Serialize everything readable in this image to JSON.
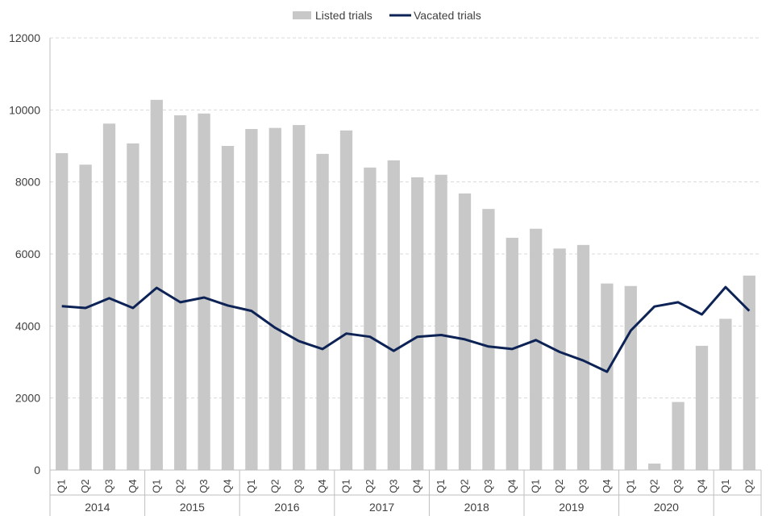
{
  "chart_data": {
    "type": "bar",
    "title": "",
    "xlabel": "",
    "ylabel": "",
    "ylim": [
      0,
      12000
    ],
    "yticks": [
      0,
      2000,
      4000,
      6000,
      8000,
      10000,
      12000
    ],
    "grid": true,
    "legend_position": "top-center",
    "quarters": [
      "Q1",
      "Q2",
      "Q3",
      "Q4",
      "Q1",
      "Q2",
      "Q3",
      "Q4",
      "Q1",
      "Q2",
      "Q3",
      "Q4",
      "Q1",
      "Q2",
      "Q3",
      "Q4",
      "Q1",
      "Q2",
      "Q3",
      "Q4",
      "Q1",
      "Q2",
      "Q3",
      "Q4",
      "Q1",
      "Q2",
      "Q3",
      "Q4",
      "Q1",
      "Q2"
    ],
    "years": [
      {
        "label": "2014",
        "count": 4
      },
      {
        "label": "2015",
        "count": 4
      },
      {
        "label": "2016",
        "count": 4
      },
      {
        "label": "2017",
        "count": 4
      },
      {
        "label": "2018",
        "count": 4
      },
      {
        "label": "2019",
        "count": 4
      },
      {
        "label": "2020",
        "count": 4
      },
      {
        "label": "",
        "count": 2
      }
    ],
    "series": [
      {
        "name": "Listed trials",
        "type": "bar",
        "color": "#c8c8c8",
        "values": [
          8800,
          8480,
          9620,
          9070,
          10280,
          9850,
          9900,
          9000,
          9470,
          9500,
          9580,
          8780,
          9430,
          8400,
          8600,
          8130,
          8200,
          7680,
          7250,
          6450,
          6700,
          6150,
          6250,
          5180,
          5110,
          180,
          1890,
          3450,
          4200,
          5400
        ]
      },
      {
        "name": "Vacated trials",
        "type": "line",
        "color": "#0d2356",
        "values": [
          4550,
          4500,
          4770,
          4500,
          5060,
          4660,
          4790,
          4570,
          4420,
          3950,
          3580,
          3360,
          3790,
          3700,
          3310,
          3700,
          3750,
          3630,
          3430,
          3360,
          3610,
          3280,
          3040,
          2730,
          3870,
          4540,
          4660,
          4320,
          5080,
          4420
        ]
      }
    ]
  }
}
